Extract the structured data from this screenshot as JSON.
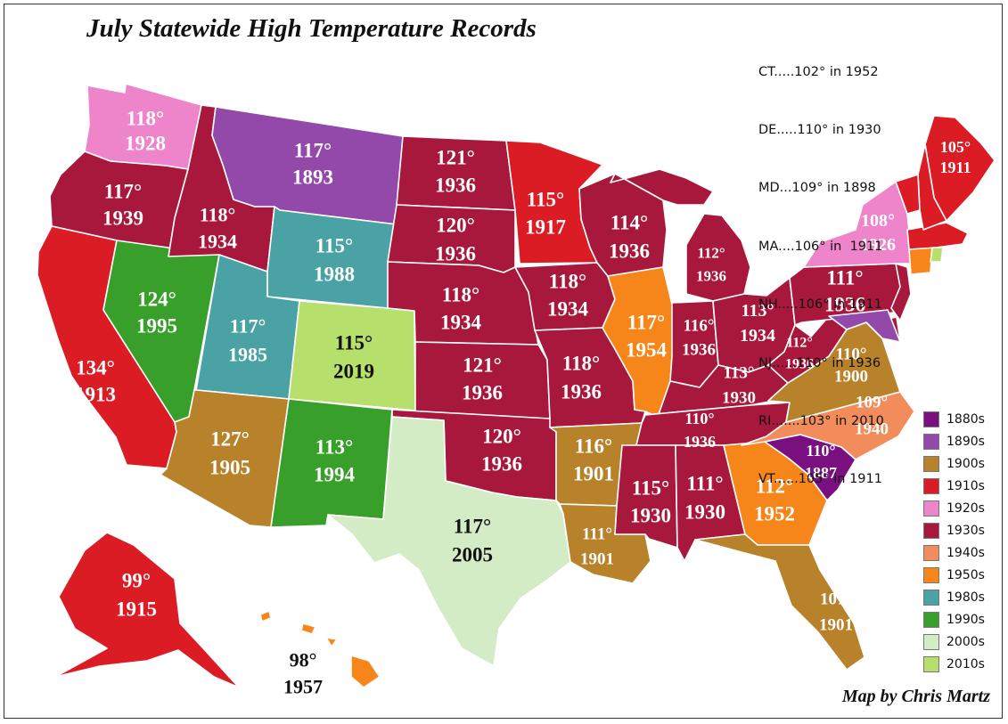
{
  "title": "July Statewide High Temperature Records",
  "credit": "Map by Chris Martz",
  "northeast_records": [
    "CT.....102° in 1952",
    "DE.....110° in 1930",
    "MD...109° in 1898",
    "MA....106° in  1911",
    "NH.....106° in 1911",
    "NJ......110° in 1936",
    "RI.......103° in 2010",
    "VT......105° in 1911"
  ],
  "legend": [
    {
      "decade": "1880s",
      "color": "#7a0f7f"
    },
    {
      "decade": "1890s",
      "color": "#9249aa"
    },
    {
      "decade": "1900s",
      "color": "#b8822b"
    },
    {
      "decade": "1910s",
      "color": "#dc1c24"
    },
    {
      "decade": "1920s",
      "color": "#ee84c9"
    },
    {
      "decade": "1930s",
      "color": "#a8183c"
    },
    {
      "decade": "1940s",
      "color": "#f28c5a"
    },
    {
      "decade": "1950s",
      "color": "#f7861a"
    },
    {
      "decade": "1980s",
      "color": "#4aa2a4"
    },
    {
      "decade": "1990s",
      "color": "#38a02a"
    },
    {
      "decade": "2000s",
      "color": "#d4ecc6"
    },
    {
      "decade": "2010s",
      "color": "#b6df6c"
    }
  ],
  "states": [
    {
      "id": "WA",
      "temp": "118°",
      "year": "1928",
      "decade": "1920s"
    },
    {
      "id": "OR",
      "temp": "117°",
      "year": "1939",
      "decade": "1930s"
    },
    {
      "id": "CA",
      "temp": "134°",
      "year": "1913",
      "decade": "1910s"
    },
    {
      "id": "NV",
      "temp": "124°",
      "year": "1995",
      "decade": "1990s"
    },
    {
      "id": "ID",
      "temp": "118°",
      "year": "1934",
      "decade": "1930s"
    },
    {
      "id": "MT",
      "temp": "117°",
      "year": "1893",
      "decade": "1890s"
    },
    {
      "id": "WY",
      "temp": "115°",
      "year": "1988",
      "decade": "1980s"
    },
    {
      "id": "UT",
      "temp": "117°",
      "year": "1985",
      "decade": "1980s"
    },
    {
      "id": "CO",
      "temp": "115°",
      "year": "2019",
      "decade": "2010s"
    },
    {
      "id": "AZ",
      "temp": "127°",
      "year": "1905",
      "decade": "1900s"
    },
    {
      "id": "NM",
      "temp": "113°",
      "year": "1994",
      "decade": "1990s"
    },
    {
      "id": "ND",
      "temp": "121°",
      "year": "1936",
      "decade": "1930s"
    },
    {
      "id": "SD",
      "temp": "120°",
      "year": "1936",
      "decade": "1930s"
    },
    {
      "id": "NE",
      "temp": "118°",
      "year": "1934",
      "decade": "1930s"
    },
    {
      "id": "KS",
      "temp": "121°",
      "year": "1936",
      "decade": "1930s"
    },
    {
      "id": "OK",
      "temp": "120°",
      "year": "1936",
      "decade": "1930s"
    },
    {
      "id": "TX",
      "temp": "117°",
      "year": "2005",
      "decade": "2000s"
    },
    {
      "id": "MN",
      "temp": "115°",
      "year": "1917",
      "decade": "1910s"
    },
    {
      "id": "IA",
      "temp": "118°",
      "year": "1934",
      "decade": "1930s"
    },
    {
      "id": "MO",
      "temp": "118°",
      "year": "1936",
      "decade": "1930s"
    },
    {
      "id": "AR",
      "temp": "116°",
      "year": "1901",
      "decade": "1900s"
    },
    {
      "id": "LA",
      "temp": "111°",
      "year": "1901",
      "decade": "1900s"
    },
    {
      "id": "WI",
      "temp": "114°",
      "year": "1936",
      "decade": "1930s"
    },
    {
      "id": "IL",
      "temp": "117°",
      "year": "1954",
      "decade": "1950s"
    },
    {
      "id": "MI",
      "temp": "112°",
      "year": "1936",
      "decade": "1930s"
    },
    {
      "id": "IN",
      "temp": "116°",
      "year": "1936",
      "decade": "1930s"
    },
    {
      "id": "OH",
      "temp": "113°",
      "year": "1934",
      "decade": "1930s"
    },
    {
      "id": "KY",
      "temp": "113°",
      "year": "1930",
      "decade": "1930s"
    },
    {
      "id": "TN",
      "temp": "110°",
      "year": "1936",
      "decade": "1930s"
    },
    {
      "id": "MS",
      "temp": "115°",
      "year": "1930",
      "decade": "1930s"
    },
    {
      "id": "AL",
      "temp": "111°",
      "year": "1930",
      "decade": "1930s"
    },
    {
      "id": "GA",
      "temp": "112°",
      "year": "1952",
      "decade": "1950s"
    },
    {
      "id": "FL",
      "temp": "107°",
      "year": "1901",
      "decade": "1900s"
    },
    {
      "id": "SC",
      "temp": "110°",
      "year": "1887",
      "decade": "1880s"
    },
    {
      "id": "NC",
      "temp": "109°",
      "year": "1940",
      "decade": "1940s"
    },
    {
      "id": "VA",
      "temp": "110°",
      "year": "1900",
      "decade": "1900s"
    },
    {
      "id": "WV",
      "temp": "112°",
      "year": "1936",
      "decade": "1930s"
    },
    {
      "id": "PA",
      "temp": "111°",
      "year": "1936",
      "decade": "1930s"
    },
    {
      "id": "NY",
      "temp": "108°",
      "year": "1926",
      "decade": "1920s"
    },
    {
      "id": "ME",
      "temp": "105°",
      "year": "1911",
      "decade": "1910s"
    },
    {
      "id": "AK",
      "temp": "99°",
      "year": "1915",
      "decade": "1910s"
    },
    {
      "id": "HI",
      "temp": "98°",
      "year": "1957",
      "decade": "1950s"
    },
    {
      "id": "CT",
      "decade": "1950s"
    },
    {
      "id": "DE",
      "decade": "1930s"
    },
    {
      "id": "MD",
      "decade": "1890s"
    },
    {
      "id": "MA",
      "decade": "1910s"
    },
    {
      "id": "NH",
      "decade": "1910s"
    },
    {
      "id": "NJ",
      "decade": "1930s"
    },
    {
      "id": "RI",
      "decade": "2010s"
    },
    {
      "id": "VT",
      "decade": "1910s"
    }
  ]
}
